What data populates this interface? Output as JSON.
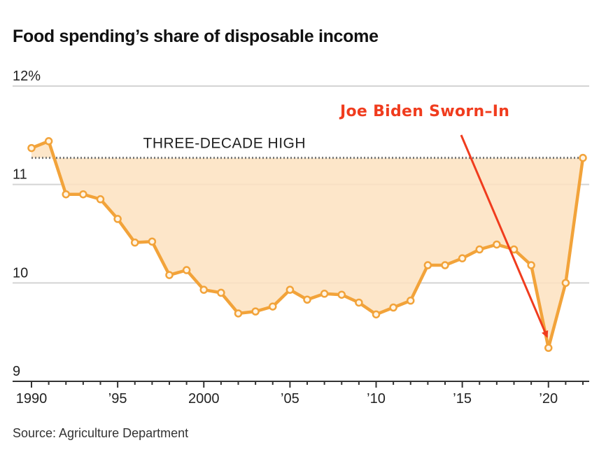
{
  "title": "Food spending’s share of disposable income",
  "source": "Source: Agriculture Department",
  "colors": {
    "line": "#f2a33a",
    "fill": "#fde2c0",
    "callout": "#f03c1e",
    "grid": "#d4d4d4",
    "reference": "#777777"
  },
  "chart_data": {
    "type": "area",
    "ylim": [
      9,
      12
    ],
    "xlim": [
      1990,
      2022
    ],
    "y_ticks": [
      {
        "value": 12,
        "label": "12%"
      },
      {
        "value": 11,
        "label": "11"
      },
      {
        "value": 10,
        "label": "10"
      },
      {
        "value": 9,
        "label": "9"
      }
    ],
    "x_ticks": [
      {
        "value": 1990,
        "label": "1990"
      },
      {
        "value": 1995,
        "label": "’95"
      },
      {
        "value": 2000,
        "label": "2000"
      },
      {
        "value": 2005,
        "label": "’05"
      },
      {
        "value": 2010,
        "label": "’10"
      },
      {
        "value": 2015,
        "label": "’15"
      },
      {
        "value": 2020,
        "label": "’20"
      }
    ],
    "x": [
      1990,
      1991,
      1992,
      1993,
      1994,
      1995,
      1996,
      1997,
      1998,
      1999,
      2000,
      2001,
      2002,
      2003,
      2004,
      2005,
      2006,
      2007,
      2008,
      2009,
      2010,
      2011,
      2012,
      2013,
      2014,
      2015,
      2016,
      2017,
      2018,
      2019,
      2020,
      2021,
      2022
    ],
    "y": [
      11.37,
      11.44,
      10.9,
      10.9,
      10.85,
      10.65,
      10.41,
      10.42,
      10.08,
      10.13,
      9.93,
      9.9,
      9.69,
      9.71,
      9.76,
      9.93,
      9.83,
      9.89,
      9.88,
      9.8,
      9.68,
      9.75,
      9.82,
      10.18,
      10.18,
      10.25,
      10.34,
      10.39,
      10.34,
      10.18,
      9.34,
      10.0,
      11.27
    ],
    "reference_line": {
      "value": 11.27,
      "label": "THREE-DECADE HIGH"
    },
    "callout": {
      "text": "Joe Biden Sworn–In",
      "target_x": 2020
    }
  }
}
